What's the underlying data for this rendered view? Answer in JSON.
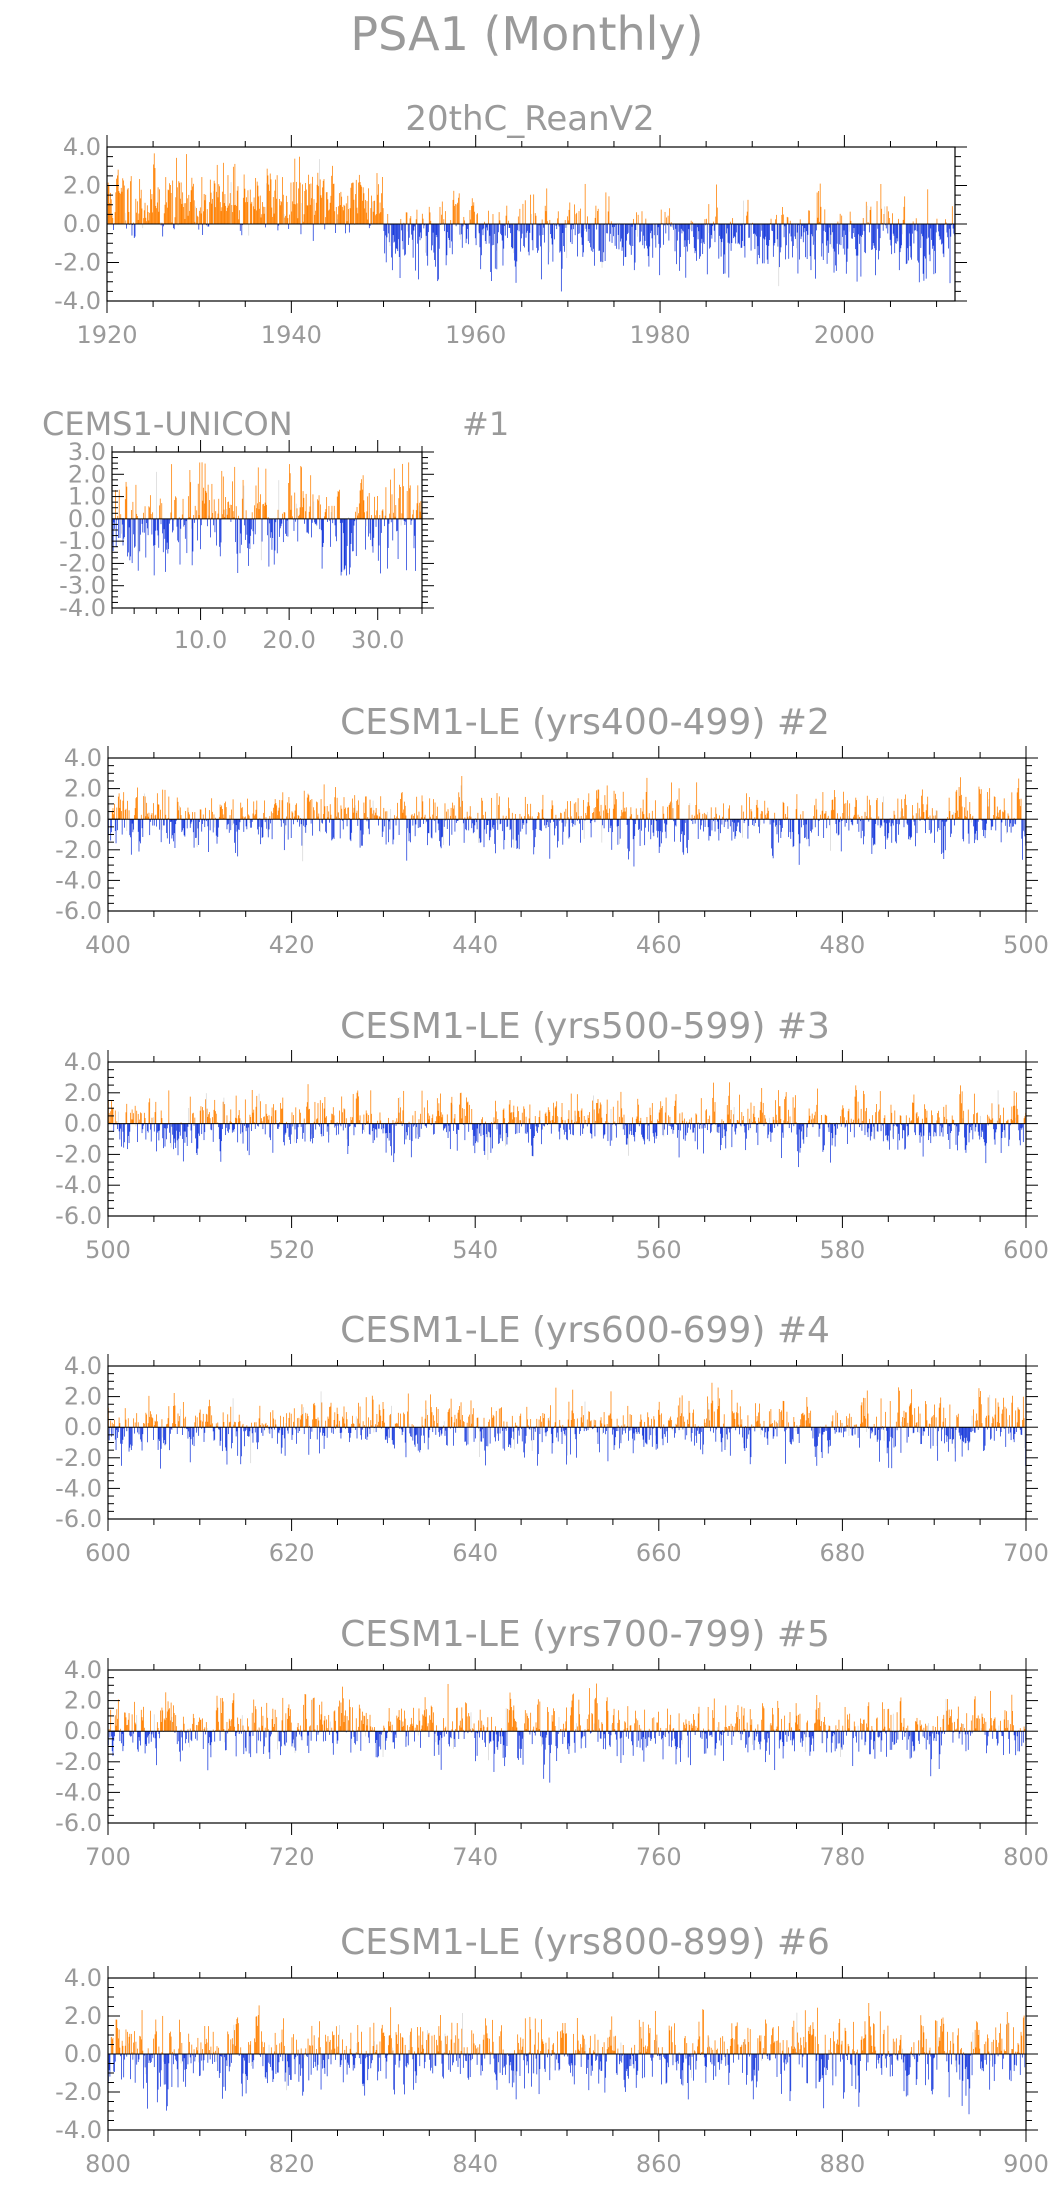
{
  "page_title": "PSA1 (Monthly)",
  "colors": {
    "positive": "#ff8000",
    "negative": "#1a3cdc",
    "frame": "#000000",
    "text": "#9a9a9a",
    "faint": "#d8d8d8"
  },
  "chart_data": [
    {
      "type": "bar",
      "title": "20thC_ReanV2",
      "annotation": "",
      "xlim": [
        1920,
        2012
      ],
      "ylim": [
        -4.0,
        4.0
      ],
      "xticks": [
        1920,
        1940,
        1960,
        1980,
        2000
      ],
      "xtick_labels": [
        "1920",
        "1940",
        "1960",
        "1980",
        "2000"
      ],
      "yticks": [
        4.0,
        2.0,
        0.0,
        -2.0,
        -4.0
      ],
      "ytick_labels": [
        "4.0",
        "2.0",
        "0.0",
        "-2.0",
        "-4.0"
      ],
      "months": 1104,
      "seed": 11,
      "amp": 0.9,
      "max_abs": 3.8,
      "segments": [
        [
          1920,
          1950,
          0.8
        ],
        [
          1950,
          1975,
          -0.3
        ],
        [
          1975,
          2012,
          -0.45
        ]
      ]
    },
    {
      "type": "bar",
      "title": "CEMS1-UNICON",
      "annotation": "#1",
      "xlim": [
        0,
        35
      ],
      "ylim": [
        -4.0,
        3.0
      ],
      "xticks": [
        10,
        20,
        30
      ],
      "xtick_labels": [
        "10.0",
        "20.0",
        "30.0"
      ],
      "yticks": [
        3.0,
        2.0,
        1.0,
        0.0,
        -1.0,
        -2.0,
        -3.0,
        -4.0
      ],
      "ytick_labels": [
        "3.0",
        "2.0",
        "1.0",
        "0.0",
        "-1.0",
        "-2.0",
        "-3.0",
        "-4.0"
      ],
      "months": 408,
      "seed": 23,
      "amp": 1.0,
      "max_abs": 2.6,
      "segments": []
    },
    {
      "type": "bar",
      "title": "CESM1-LE (yrs400-499) #2",
      "annotation": "",
      "xlim": [
        400,
        500
      ],
      "ylim": [
        -6.0,
        4.0
      ],
      "xticks": [
        400,
        420,
        440,
        460,
        480,
        500
      ],
      "xtick_labels": [
        "400",
        "420",
        "440",
        "460",
        "480",
        "500"
      ],
      "yticks": [
        4.0,
        2.0,
        0.0,
        -2.0,
        -4.0,
        -6.0
      ],
      "ytick_labels": [
        "4.0",
        "2.0",
        "0.0",
        "-2.0",
        "-4.0",
        "-6.0"
      ],
      "months": 1200,
      "seed": 37,
      "amp": 0.9,
      "max_abs": 4.2,
      "segments": []
    },
    {
      "type": "bar",
      "title": "CESM1-LE (yrs500-599) #3",
      "annotation": "",
      "xlim": [
        500,
        600
      ],
      "ylim": [
        -6.0,
        4.0
      ],
      "xticks": [
        500,
        520,
        540,
        560,
        580,
        600
      ],
      "xtick_labels": [
        "500",
        "520",
        "540",
        "560",
        "580",
        "600"
      ],
      "yticks": [
        4.0,
        2.0,
        0.0,
        -2.0,
        -4.0,
        -6.0
      ],
      "ytick_labels": [
        "4.0",
        "2.0",
        "0.0",
        "-2.0",
        "-4.0",
        "-6.0"
      ],
      "months": 1200,
      "seed": 41,
      "amp": 0.9,
      "max_abs": 3.0,
      "segments": []
    },
    {
      "type": "bar",
      "title": "CESM1-LE (yrs600-699) #4",
      "annotation": "",
      "xlim": [
        600,
        700
      ],
      "ylim": [
        -6.0,
        4.0
      ],
      "xticks": [
        600,
        620,
        640,
        660,
        680,
        700
      ],
      "xtick_labels": [
        "600",
        "620",
        "640",
        "660",
        "680",
        "700"
      ],
      "yticks": [
        4.0,
        2.0,
        0.0,
        -2.0,
        -4.0,
        -6.0
      ],
      "ytick_labels": [
        "4.0",
        "2.0",
        "0.0",
        "-2.0",
        "-4.0",
        "-6.0"
      ],
      "months": 1200,
      "seed": 53,
      "amp": 0.9,
      "max_abs": 3.0,
      "segments": []
    },
    {
      "type": "bar",
      "title": "CESM1-LE (yrs700-799) #5",
      "annotation": "",
      "xlim": [
        700,
        800
      ],
      "ylim": [
        -6.0,
        4.0
      ],
      "xticks": [
        700,
        720,
        740,
        760,
        780,
        800
      ],
      "xtick_labels": [
        "700",
        "720",
        "740",
        "760",
        "780",
        "800"
      ],
      "yticks": [
        4.0,
        2.0,
        0.0,
        -2.0,
        -4.0,
        -6.0
      ],
      "ytick_labels": [
        "4.0",
        "2.0",
        "0.0",
        "-2.0",
        "-4.0",
        "-6.0"
      ],
      "months": 1200,
      "seed": 67,
      "amp": 0.9,
      "max_abs": 4.0,
      "segments": []
    },
    {
      "type": "bar",
      "title": "CESM1-LE (yrs800-899) #6",
      "annotation": "",
      "xlim": [
        800,
        900
      ],
      "ylim": [
        -4.0,
        4.0
      ],
      "xticks": [
        800,
        820,
        840,
        860,
        880,
        900
      ],
      "xtick_labels": [
        "800",
        "820",
        "840",
        "860",
        "880",
        "900"
      ],
      "yticks": [
        4.0,
        2.0,
        0.0,
        -2.0,
        -4.0
      ],
      "ytick_labels": [
        "4.0",
        "2.0",
        "0.0",
        "-2.0",
        "-4.0"
      ],
      "months": 1200,
      "seed": 79,
      "amp": 0.95,
      "max_abs": 3.4,
      "segments": []
    }
  ]
}
